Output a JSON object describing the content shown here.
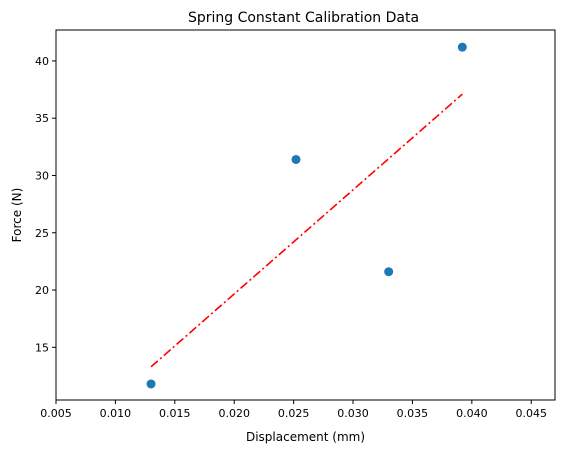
{
  "chart_data": {
    "type": "scatter",
    "title": "Spring Constant Calibration Data",
    "xlabel": "Displacement (mm)",
    "ylabel": "Force (N)",
    "xlim": [
      0.005,
      0.047
    ],
    "ylim": [
      10.4,
      42.7
    ],
    "xticks": [
      0.005,
      0.01,
      0.015,
      0.02,
      0.025,
      0.03,
      0.035,
      0.04,
      0.045
    ],
    "xtick_labels": [
      "0.005",
      "0.010",
      "0.015",
      "0.020",
      "0.025",
      "0.030",
      "0.035",
      "0.040",
      "0.045"
    ],
    "yticks": [
      15,
      20,
      25,
      30,
      35,
      40
    ],
    "ytick_labels": [
      "15",
      "20",
      "25",
      "30",
      "35",
      "40"
    ],
    "grid": false,
    "series": [
      {
        "kind": "scatter",
        "color": "#1f77b4",
        "x": [
          0.013,
          0.0252,
          0.033,
          0.0392
        ],
        "y": [
          11.8,
          31.4,
          21.6,
          41.2
        ]
      },
      {
        "kind": "line",
        "style": "dash-dot",
        "color": "#ff0000",
        "x": [
          0.013,
          0.0392
        ],
        "y": [
          13.3,
          37.1
        ]
      }
    ]
  }
}
